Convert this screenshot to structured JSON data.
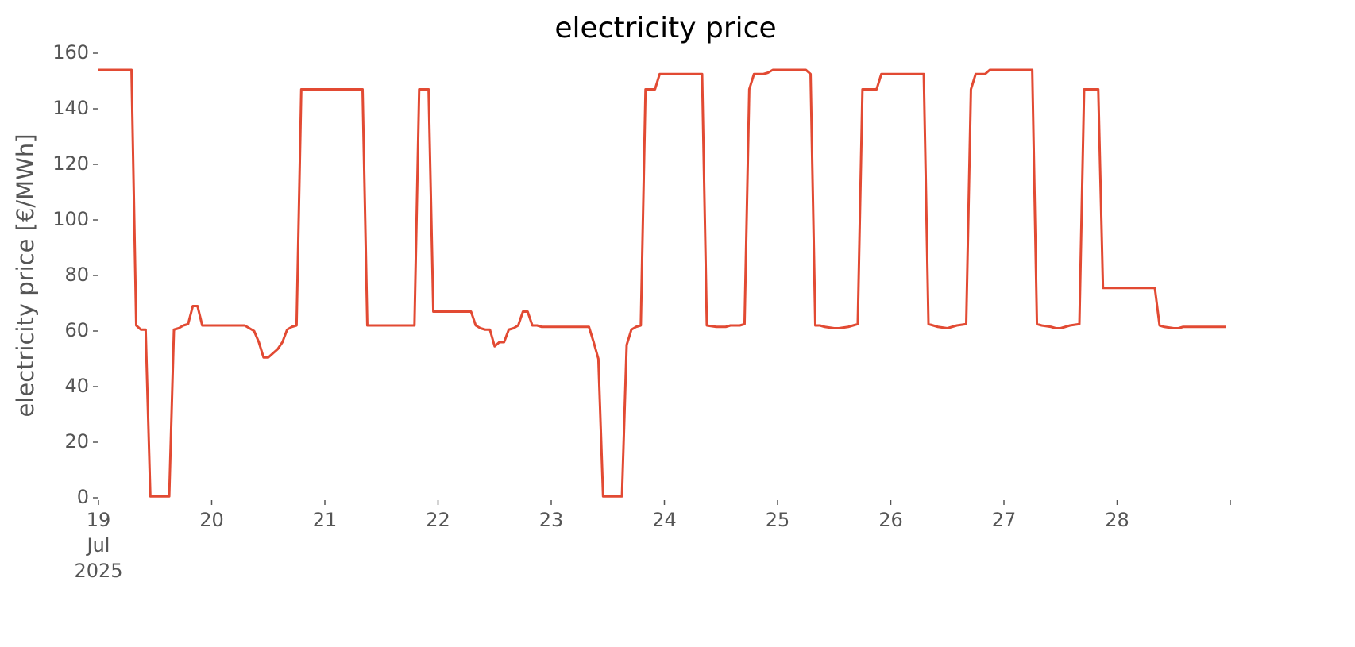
{
  "chart_data": {
    "type": "line",
    "title": "electricity price",
    "ylabel": "electricity price [€/MWh]",
    "x": [
      "2025-07-19T00:00",
      "2025-07-19T07:00",
      "2025-07-19T08:00",
      "2025-07-19T09:00",
      "2025-07-19T10:00",
      "2025-07-19T11:00",
      "2025-07-19T15:00",
      "2025-07-19T16:00",
      "2025-07-19T17:00",
      "2025-07-19T18:00",
      "2025-07-19T19:00",
      "2025-07-19T20:00",
      "2025-07-19T21:00",
      "2025-07-19T22:00",
      "2025-07-20T07:00",
      "2025-07-20T08:00",
      "2025-07-20T09:00",
      "2025-07-20T10:00",
      "2025-07-20T11:00",
      "2025-07-20T12:00",
      "2025-07-20T13:00",
      "2025-07-20T14:00",
      "2025-07-20T15:00",
      "2025-07-20T16:00",
      "2025-07-20T17:00",
      "2025-07-20T18:00",
      "2025-07-20T19:00",
      "2025-07-21T08:00",
      "2025-07-21T09:00",
      "2025-07-21T19:00",
      "2025-07-21T20:00",
      "2025-07-21T22:00",
      "2025-07-21T23:00",
      "2025-07-22T07:00",
      "2025-07-22T08:00",
      "2025-07-22T09:00",
      "2025-07-22T10:00",
      "2025-07-22T11:00",
      "2025-07-22T12:00",
      "2025-07-22T13:00",
      "2025-07-22T14:00",
      "2025-07-22T15:00",
      "2025-07-22T16:00",
      "2025-07-22T17:00",
      "2025-07-22T18:00",
      "2025-07-22T19:00",
      "2025-07-22T20:00",
      "2025-07-22T21:00",
      "2025-07-22T22:00",
      "2025-07-23T08:00",
      "2025-07-23T09:00",
      "2025-07-23T10:00",
      "2025-07-23T11:00",
      "2025-07-23T15:00",
      "2025-07-23T16:00",
      "2025-07-23T17:00",
      "2025-07-23T18:00",
      "2025-07-23T19:00",
      "2025-07-23T20:00",
      "2025-07-23T22:00",
      "2025-07-23T23:00",
      "2025-07-24T08:00",
      "2025-07-24T09:00",
      "2025-07-24T11:00",
      "2025-07-24T13:00",
      "2025-07-24T14:00",
      "2025-07-24T16:00",
      "2025-07-24T17:00",
      "2025-07-24T18:00",
      "2025-07-24T19:00",
      "2025-07-24T21:00",
      "2025-07-24T22:00",
      "2025-07-24T23:00",
      "2025-07-25T06:00",
      "2025-07-25T07:00",
      "2025-07-25T08:00",
      "2025-07-25T09:00",
      "2025-07-25T10:00",
      "2025-07-25T12:00",
      "2025-07-25T13:00",
      "2025-07-25T15:00",
      "2025-07-25T16:00",
      "2025-07-25T17:00",
      "2025-07-25T18:00",
      "2025-07-25T21:00",
      "2025-07-25T22:00",
      "2025-07-26T07:00",
      "2025-07-26T08:00",
      "2025-07-26T09:00",
      "2025-07-26T10:00",
      "2025-07-26T12:00",
      "2025-07-26T14:00",
      "2025-07-26T16:00",
      "2025-07-26T17:00",
      "2025-07-26T18:00",
      "2025-07-26T20:00",
      "2025-07-26T21:00",
      "2025-07-27T06:00",
      "2025-07-27T07:00",
      "2025-07-27T08:00",
      "2025-07-27T10:00",
      "2025-07-27T11:00",
      "2025-07-27T12:00",
      "2025-07-27T14:00",
      "2025-07-27T16:00",
      "2025-07-27T17:00",
      "2025-07-27T20:00",
      "2025-07-27T21:00",
      "2025-07-28T08:00",
      "2025-07-28T09:00",
      "2025-07-28T10:00",
      "2025-07-28T12:00",
      "2025-07-28T13:00",
      "2025-07-28T14:00",
      "2025-07-28T23:00"
    ],
    "series": [
      {
        "name": "electricity price",
        "color": "#E24A33",
        "values": [
          154,
          154,
          62,
          60.5,
          60.5,
          0.5,
          0.5,
          60.5,
          61,
          62,
          62.5,
          69,
          69,
          62,
          62,
          61,
          60,
          56,
          50.5,
          50.5,
          52,
          53.5,
          56,
          60.5,
          61.5,
          62,
          147,
          147,
          62,
          62,
          147,
          147,
          67,
          67,
          62,
          61,
          60.5,
          60.5,
          54.5,
          56,
          56,
          60.5,
          61,
          62,
          67,
          67,
          62,
          62,
          61.5,
          61.5,
          56,
          50,
          0.5,
          0.5,
          55,
          60.5,
          61.5,
          62,
          147,
          147,
          152.5,
          152.5,
          62,
          61.5,
          61.5,
          62,
          62,
          62.5,
          147,
          152.5,
          152.5,
          153,
          154,
          154,
          152.5,
          62,
          62,
          61.5,
          61,
          61,
          61.5,
          62,
          62.5,
          147,
          147,
          152.5,
          152.5,
          62.5,
          62,
          61.5,
          61,
          62,
          62.5,
          147,
          152.5,
          152.5,
          154,
          154,
          62.5,
          62,
          61.5,
          61,
          61,
          62,
          62.5,
          147,
          147,
          75.5,
          75.5,
          62,
          61.5,
          61,
          61,
          61.5,
          61.5
        ]
      }
    ],
    "xlim": [
      "2025-07-19T00:00",
      "2025-07-29T00:00"
    ],
    "xticks": [
      {
        "value": "2025-07-19T00:00",
        "label": "19\nJul\n2025"
      },
      {
        "value": "2025-07-20T00:00",
        "label": "20"
      },
      {
        "value": "2025-07-21T00:00",
        "label": "21"
      },
      {
        "value": "2025-07-22T00:00",
        "label": "22"
      },
      {
        "value": "2025-07-23T00:00",
        "label": "23"
      },
      {
        "value": "2025-07-24T00:00",
        "label": "24"
      },
      {
        "value": "2025-07-25T00:00",
        "label": "25"
      },
      {
        "value": "2025-07-26T00:00",
        "label": "26"
      },
      {
        "value": "2025-07-27T00:00",
        "label": "27"
      },
      {
        "value": "2025-07-28T00:00",
        "label": "28"
      },
      {
        "value": "2025-07-29T00:00",
        "label": null
      }
    ],
    "ylim": [
      0,
      160
    ],
    "yticks": [
      0,
      20,
      40,
      60,
      80,
      100,
      120,
      140,
      160
    ],
    "grid": false
  }
}
